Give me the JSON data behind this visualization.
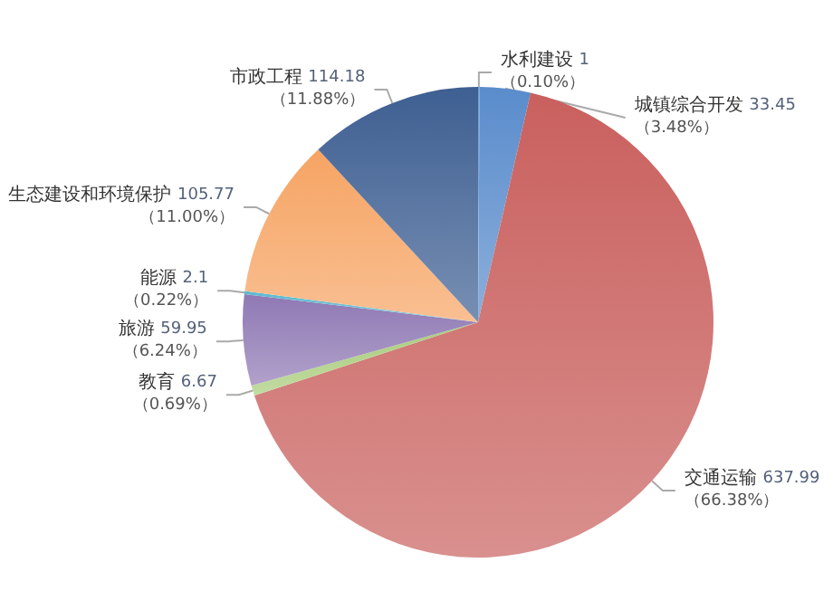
{
  "chart_data": {
    "type": "pie",
    "categories": [
      "水利建设",
      "城镇综合开发",
      "交通运输",
      "教育",
      "旅游",
      "能源",
      "生态建设和环境保护",
      "市政工程"
    ],
    "values": [
      1,
      33.45,
      637.99,
      6.67,
      59.95,
      2.1,
      105.77,
      114.18
    ],
    "colors": [
      "#6f9bd1",
      "#5a8ccc",
      "#c9605e",
      "#a8cc7a",
      "#8f79b4",
      "#5bb8cf",
      "#f6a463",
      "#3e5f92"
    ],
    "value_labels": [
      "1",
      "33.45",
      "637.99",
      "6.67",
      "59.95",
      "2.1",
      "105.77",
      "114.18"
    ],
    "annotations": [
      "（0.10%）",
      "（3.48%）",
      "（66.38%）",
      "（0.69%）",
      "（6.24%）",
      "（0.22%）",
      "（11.00%）",
      "（11.88%）"
    ]
  }
}
